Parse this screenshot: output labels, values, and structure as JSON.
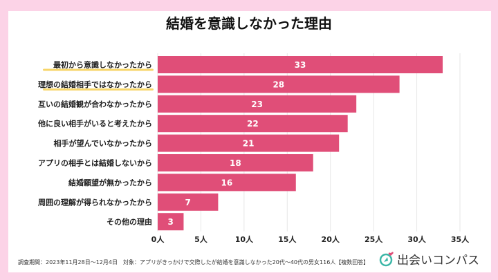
{
  "chart_data": {
    "type": "bar",
    "orientation": "horizontal",
    "title": "結婚を意識しなかった理由",
    "categories": [
      "最初から意識しなかったから",
      "理想の結婚相手ではなかったから",
      "互いの結婚観が合わなかったから",
      "他に良い相手がいると考えたから",
      "相手が望んでいなかったから",
      "アプリの相手とは結婚しないから",
      "結婚願望が無かったから",
      "周囲の理解が得られなかったから",
      "その他の理由"
    ],
    "values": [
      33,
      28,
      23,
      22,
      21,
      18,
      16,
      7,
      3
    ],
    "highlighted_categories": [
      "最初から意識しなかったから",
      "理想の結婚相手ではなかったから"
    ],
    "xlim": [
      0,
      35
    ],
    "xticks": [
      "0人",
      "5人",
      "10人",
      "15人",
      "20人",
      "25人",
      "30人",
      "35人"
    ],
    "grid": "vertical",
    "colors": {
      "bar": "#e04e78",
      "highlight_underline": "#f7d66a",
      "background": "#fcd3e7"
    }
  },
  "footnote": "調査期間：2023年11月28日〜12月4日　対象：アプリがきっかけで交際したが結婚を意識しなかった20代〜40代の男女116人【複数回答】",
  "logo": {
    "text": "出会いコンパス",
    "icon": "compass-icon"
  }
}
